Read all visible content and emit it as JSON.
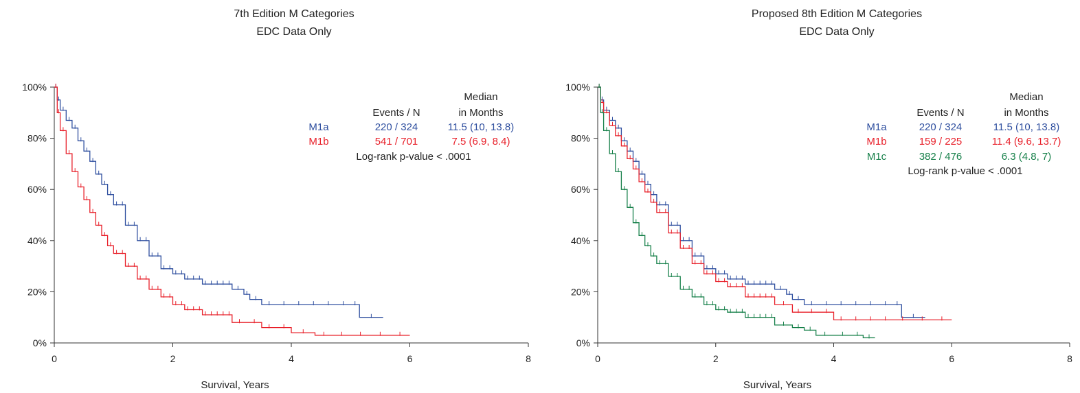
{
  "chart_data": [
    {
      "type": "line",
      "title": "7th Edition M Categories",
      "subtitle": "EDC Data Only",
      "xlabel": "Survival, Years",
      "ylabel": "",
      "xlim": [
        0,
        8
      ],
      "ylim": [
        0,
        100
      ],
      "x_ticks": [
        "0",
        "2",
        "4",
        "6",
        "8"
      ],
      "y_ticks": [
        "0%",
        "20%",
        "40%",
        "60%",
        "80%",
        "100%"
      ],
      "grid": false,
      "table": {
        "col_events": "Events / N",
        "col_median_1": "Median",
        "col_median_2": "in Months",
        "rows": [
          {
            "name": "M1a",
            "events": "220 / 324",
            "median": "11.5 (10, 13.8)",
            "color": "#2f4f9f"
          },
          {
            "name": "M1b",
            "events": "541 / 701",
            "median": "7.5 (6.9, 8.4)",
            "color": "#e8202a"
          }
        ],
        "pvalue": "Log-rank p-value < .0001"
      },
      "series": [
        {
          "name": "M1a",
          "color": "#2f4f9f",
          "x": [
            0,
            0.05,
            0.1,
            0.2,
            0.3,
            0.4,
            0.5,
            0.6,
            0.7,
            0.8,
            0.9,
            1.0,
            1.2,
            1.4,
            1.6,
            1.8,
            2.0,
            2.2,
            2.5,
            3.0,
            3.2,
            3.3,
            3.5,
            4.0,
            4.5,
            5.0,
            5.15,
            5.55
          ],
          "y": [
            100,
            95,
            91,
            87,
            84,
            79,
            75,
            71,
            66,
            62,
            58,
            54,
            46,
            40,
            34,
            29,
            27,
            25,
            23,
            21,
            19,
            17,
            15,
            15,
            15,
            15,
            10,
            10
          ]
        },
        {
          "name": "M1b",
          "color": "#e8202a",
          "x": [
            0,
            0.05,
            0.1,
            0.2,
            0.3,
            0.4,
            0.5,
            0.6,
            0.7,
            0.8,
            0.9,
            1.0,
            1.2,
            1.4,
            1.6,
            1.8,
            2.0,
            2.2,
            2.5,
            3.0,
            3.5,
            4.0,
            4.4,
            5.0,
            6.0
          ],
          "y": [
            100,
            90,
            83,
            74,
            67,
            61,
            56,
            51,
            46,
            42,
            38,
            35,
            30,
            25,
            21,
            18,
            15,
            13,
            11,
            8,
            6,
            4,
            3,
            3,
            3
          ]
        }
      ]
    },
    {
      "type": "line",
      "title": "Proposed 8th Edition M Categories",
      "subtitle": "EDC Data Only",
      "xlabel": "Survival, Years",
      "ylabel": "",
      "xlim": [
        0,
        8
      ],
      "ylim": [
        0,
        100
      ],
      "x_ticks": [
        "0",
        "2",
        "4",
        "6",
        "8"
      ],
      "y_ticks": [
        "0%",
        "20%",
        "40%",
        "60%",
        "80%",
        "100%"
      ],
      "grid": false,
      "table": {
        "col_events": "Events / N",
        "col_median_1": "Median",
        "col_median_2": "in Months",
        "rows": [
          {
            "name": "M1a",
            "events": "220 / 324",
            "median": "11.5 (10, 13.8)",
            "color": "#2f4f9f"
          },
          {
            "name": "M1b",
            "events": "159 / 225",
            "median": "11.4 (9.6, 13.7)",
            "color": "#e8202a"
          },
          {
            "name": "M1c",
            "events": "382 / 476",
            "median": "6.3 (4.8, 7)",
            "color": "#17804a"
          }
        ],
        "pvalue": "Log-rank p-value < .0001"
      },
      "series": [
        {
          "name": "M1a",
          "color": "#2f4f9f",
          "x": [
            0,
            0.05,
            0.1,
            0.2,
            0.3,
            0.4,
            0.5,
            0.6,
            0.7,
            0.8,
            0.9,
            1.0,
            1.2,
            1.4,
            1.6,
            1.8,
            2.0,
            2.2,
            2.5,
            3.0,
            3.2,
            3.3,
            3.5,
            4.0,
            4.5,
            5.0,
            5.15,
            5.55
          ],
          "y": [
            100,
            95,
            91,
            87,
            84,
            79,
            75,
            71,
            66,
            62,
            58,
            54,
            46,
            40,
            34,
            29,
            27,
            25,
            23,
            21,
            19,
            17,
            15,
            15,
            15,
            15,
            10,
            10
          ]
        },
        {
          "name": "M1b",
          "color": "#e8202a",
          "x": [
            0,
            0.05,
            0.1,
            0.2,
            0.3,
            0.4,
            0.5,
            0.6,
            0.7,
            0.8,
            0.9,
            1.0,
            1.2,
            1.4,
            1.6,
            1.8,
            2.0,
            2.2,
            2.5,
            3.0,
            3.3,
            3.5,
            4.0,
            4.5,
            5.0,
            6.0
          ],
          "y": [
            100,
            94,
            90,
            85,
            81,
            77,
            72,
            68,
            63,
            59,
            55,
            51,
            43,
            37,
            31,
            27,
            24,
            22,
            18,
            15,
            12,
            12,
            9,
            9,
            9,
            9
          ]
        },
        {
          "name": "M1c",
          "color": "#17804a",
          "x": [
            0,
            0.05,
            0.1,
            0.2,
            0.3,
            0.4,
            0.5,
            0.6,
            0.7,
            0.8,
            0.9,
            1.0,
            1.2,
            1.4,
            1.6,
            1.8,
            2.0,
            2.2,
            2.5,
            3.0,
            3.3,
            3.5,
            3.7,
            4.0,
            4.3,
            4.5,
            4.7
          ],
          "y": [
            100,
            90,
            83,
            74,
            67,
            60,
            53,
            47,
            42,
            38,
            34,
            31,
            26,
            21,
            18,
            15,
            13,
            12,
            10,
            7,
            6,
            5,
            3,
            3,
            3,
            2,
            2
          ]
        }
      ]
    }
  ]
}
